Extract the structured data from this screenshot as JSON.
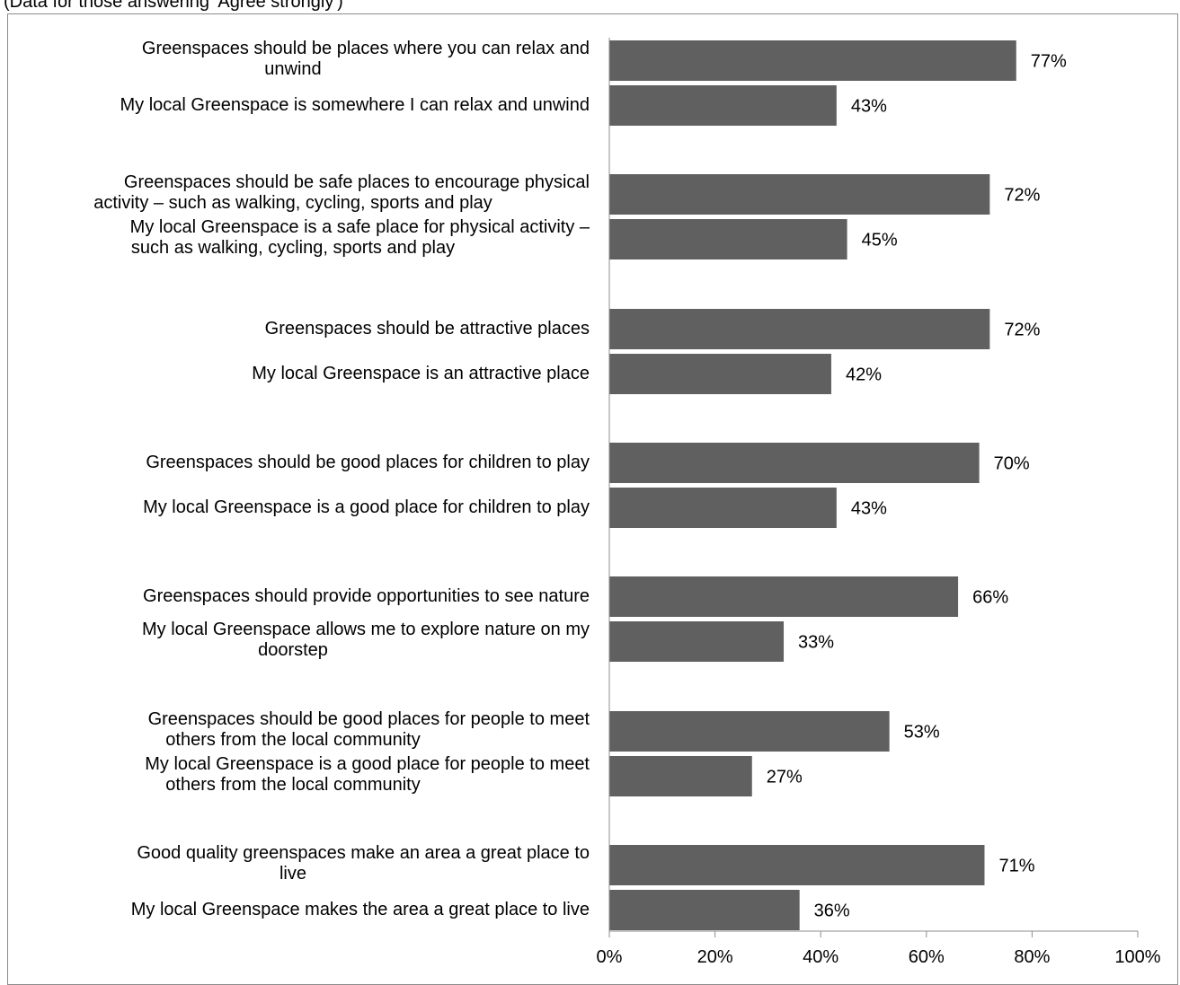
{
  "subtitle": "(Data for those answering 'Agree strongly')",
  "colors": {
    "bar": "#606060",
    "axis": "#8c8c8c",
    "text": "#000000"
  },
  "chart_data": {
    "type": "bar",
    "orientation": "horizontal",
    "title": "",
    "subtitle": "(Data for those answering 'Agree strongly')",
    "xlabel": "",
    "ylabel": "",
    "xlim": [
      0,
      100
    ],
    "x_ticks": [
      "0%",
      "20%",
      "40%",
      "60%",
      "80%",
      "100%"
    ],
    "grid": false,
    "legend": "none",
    "categories": [
      {
        "label": "Greenspaces should be places where you can relax and unwind",
        "value": 77,
        "value_label": "77%"
      },
      {
        "label": "My local Greenspace is somewhere I can relax and unwind",
        "value": 43,
        "value_label": "43%"
      },
      {
        "label": "Greenspaces should be safe places to encourage physical activity – such as walking, cycling, sports and play",
        "value": 72,
        "value_label": "72%"
      },
      {
        "label": "My local Greenspace is a safe place for physical activity – such as walking, cycling, sports and play",
        "value": 45,
        "value_label": "45%"
      },
      {
        "label": "Greenspaces should be attractive places",
        "value": 72,
        "value_label": "72%"
      },
      {
        "label": "My local Greenspace is an attractive place",
        "value": 42,
        "value_label": "42%"
      },
      {
        "label": "Greenspaces should be good places for children to play",
        "value": 70,
        "value_label": "70%"
      },
      {
        "label": "My local Greenspace is a good place for children to play",
        "value": 43,
        "value_label": "43%"
      },
      {
        "label": "Greenspaces should provide opportunities to see nature",
        "value": 66,
        "value_label": "66%"
      },
      {
        "label": "My local Greenspace allows me to explore nature on my doorstep",
        "value": 33,
        "value_label": "33%"
      },
      {
        "label": "Greenspaces should be good places for people to meet others from the local community",
        "value": 53,
        "value_label": "53%"
      },
      {
        "label": "My local Greenspace is a good place for people to meet others from the local community",
        "value": 27,
        "value_label": "27%"
      },
      {
        "label": "Good quality greenspaces make an area a great place to live",
        "value": 71,
        "value_label": "71%"
      },
      {
        "label": "My local Greenspace makes the area a great place to live",
        "value": 36,
        "value_label": "36%"
      }
    ]
  }
}
